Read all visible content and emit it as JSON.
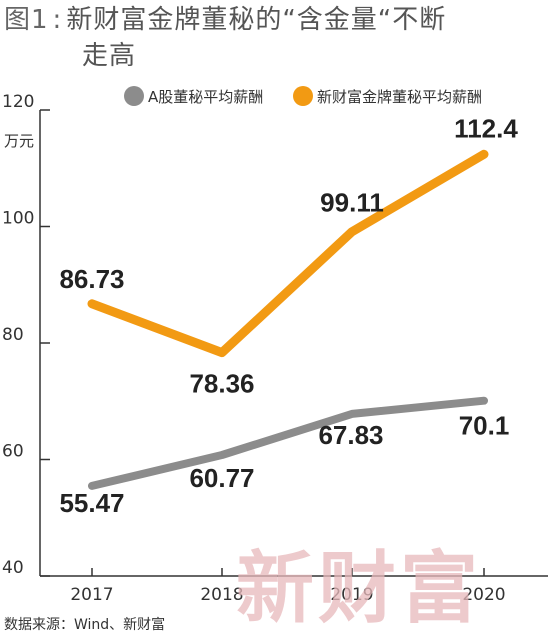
{
  "figure": {
    "label": "图1",
    "title_line1": "新财富金牌董秘的“含金量“不断",
    "title_line2": "走高",
    "source": "数据来源：Wind、新财富",
    "watermark": "新财富"
  },
  "colors": {
    "series_a": "#8c8c8c",
    "series_b": "#f29a13",
    "axis": "#333333"
  },
  "chart_data": {
    "type": "line",
    "x": [
      "2017",
      "2018",
      "2019",
      "2020"
    ],
    "ylabel": "万元",
    "ylim": [
      40,
      120
    ],
    "yticks": [
      40,
      60,
      80,
      100,
      120
    ],
    "grid": false,
    "legend_position": "top-right",
    "series": [
      {
        "name": "A股董秘平均薪酬",
        "values": [
          55.47,
          60.77,
          67.83,
          70.1
        ],
        "labels": [
          "55.47",
          "60.77",
          "67.83",
          "70.1"
        ]
      },
      {
        "name": "新财富金牌董秘平均薪酬",
        "values": [
          86.73,
          78.36,
          99.11,
          112.4
        ],
        "labels": [
          "86.73",
          "78.36",
          "99.11",
          "112.4"
        ]
      }
    ]
  }
}
